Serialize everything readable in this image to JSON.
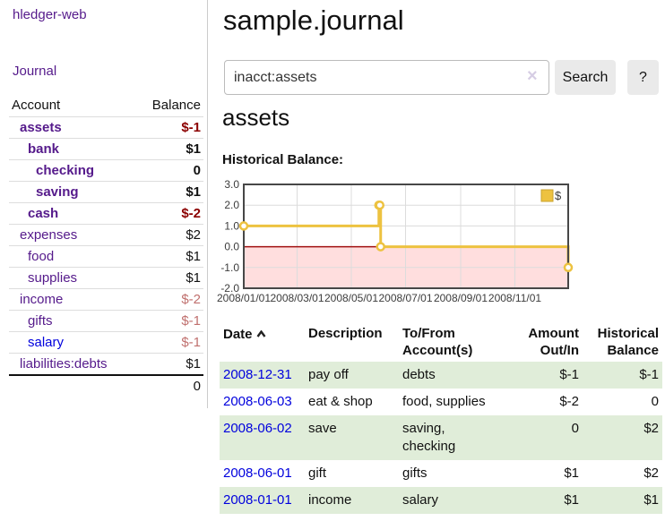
{
  "app": {
    "brand": "hledger-web"
  },
  "sidebar": {
    "journal_link": "Journal",
    "account_header": "Account",
    "balance_header": "Balance",
    "accounts": [
      {
        "account": "assets",
        "balance": "$-1"
      },
      {
        "account": "bank",
        "balance": "$1"
      },
      {
        "account": "checking",
        "balance": "0"
      },
      {
        "account": "saving",
        "balance": "$1"
      },
      {
        "account": "cash",
        "balance": "$-2"
      },
      {
        "account": "expenses",
        "balance": "$2"
      },
      {
        "account": "food",
        "balance": "$1"
      },
      {
        "account": "supplies",
        "balance": "$1"
      },
      {
        "account": "income",
        "balance": "$-2"
      },
      {
        "account": "gifts",
        "balance": "$-1"
      },
      {
        "account": "salary",
        "balance": "$-1"
      },
      {
        "account": "liabilities:debts",
        "balance": "$1"
      }
    ],
    "total": "0"
  },
  "header": {
    "title": "sample.journal"
  },
  "search": {
    "value": "inacct:assets",
    "placeholder": "",
    "clear_icon": "×",
    "button": "Search",
    "help_button": "?"
  },
  "account_page": {
    "title": "assets",
    "chart_label": "Historical Balance:"
  },
  "chart_data": {
    "type": "line",
    "step": true,
    "title": "Historical Balance:",
    "x_range": [
      "2008-01-01",
      "2008-12-31"
    ],
    "ylim": [
      -2,
      3
    ],
    "y_ticks": [
      3.0,
      2.0,
      1.0,
      0.0,
      -1.0,
      -2.0
    ],
    "x_ticks": [
      "2008/01/01",
      "2008/03/01",
      "2008/05/01",
      "2008/07/01",
      "2008/09/01",
      "2008/11/01"
    ],
    "series": [
      {
        "name": "$",
        "color": "#edc240",
        "points": [
          [
            "2008-01-01",
            1
          ],
          [
            "2008-06-01",
            2
          ],
          [
            "2008-06-02",
            2
          ],
          [
            "2008-06-03",
            0
          ],
          [
            "2008-12-31",
            -1
          ]
        ]
      }
    ],
    "grid": true,
    "legend_position": "top-right",
    "negative_region_fill": "#ffdede",
    "zero_line_color": "#a01010"
  },
  "transactions": {
    "columns": {
      "date": "Date",
      "description": "Description",
      "accounts": "To/From Account(s)",
      "amount": "Amount Out/In",
      "balance": "Historical Balance"
    },
    "rows": [
      {
        "date": "2008-12-31",
        "description": "pay off",
        "accounts": "debts",
        "amount": "$-1",
        "balance": "$-1"
      },
      {
        "date": "2008-06-03",
        "description": "eat & shop",
        "accounts": "food, supplies",
        "amount": "$-2",
        "balance": "0"
      },
      {
        "date": "2008-06-02",
        "description": "save",
        "accounts": "saving, checking",
        "amount": "0",
        "balance": "$2"
      },
      {
        "date": "2008-06-01",
        "description": "gift",
        "accounts": "gifts",
        "amount": "$1",
        "balance": "$2"
      },
      {
        "date": "2008-01-01",
        "description": "income",
        "accounts": "salary",
        "amount": "$1",
        "balance": "$1"
      }
    ]
  },
  "colors": {
    "accent_purple": "#551a8b",
    "link_blue": "#0000dd",
    "negative_strong": "#8b0000",
    "negative_soft": "#c0706e",
    "row_stripe_green": "#e0edd9",
    "chart_line_gold": "#edc240",
    "chart_negative_pink": "#ffdede",
    "chart_zero_line": "#a01010"
  }
}
